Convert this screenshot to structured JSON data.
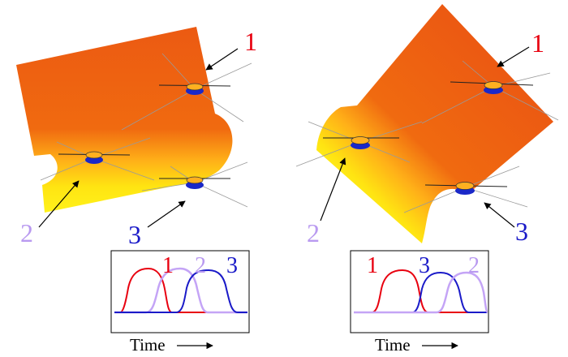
{
  "colors": {
    "sensor1": "#e8000f",
    "sensor2": "#b99af0",
    "sensor3": "#1a1ac8",
    "wave_dark": "#ef5a12",
    "wave_light": "#ffee10",
    "device": "#1a28c8"
  },
  "left_panel": {
    "labels": {
      "sensor1": "1",
      "sensor2": "2",
      "sensor3": "3"
    },
    "plot": {
      "labels": {
        "first": "1",
        "second": "2",
        "third": "3"
      },
      "xlabel": "Time"
    }
  },
  "right_panel": {
    "labels": {
      "sensor1": "1",
      "sensor2": "2",
      "sensor3": "3"
    },
    "plot": {
      "labels": {
        "first": "1",
        "second": "3",
        "third": "2"
      },
      "xlabel": "Time"
    }
  },
  "chart_data": [
    {
      "type": "line",
      "xlabel": "Time",
      "series": [
        {
          "name": "1",
          "peak_order": 1
        },
        {
          "name": "2",
          "peak_order": 2
        },
        {
          "name": "3",
          "peak_order": 3
        }
      ]
    },
    {
      "type": "line",
      "xlabel": "Time",
      "series": [
        {
          "name": "1",
          "peak_order": 1
        },
        {
          "name": "3",
          "peak_order": 2
        },
        {
          "name": "2",
          "peak_order": 3
        }
      ]
    }
  ]
}
